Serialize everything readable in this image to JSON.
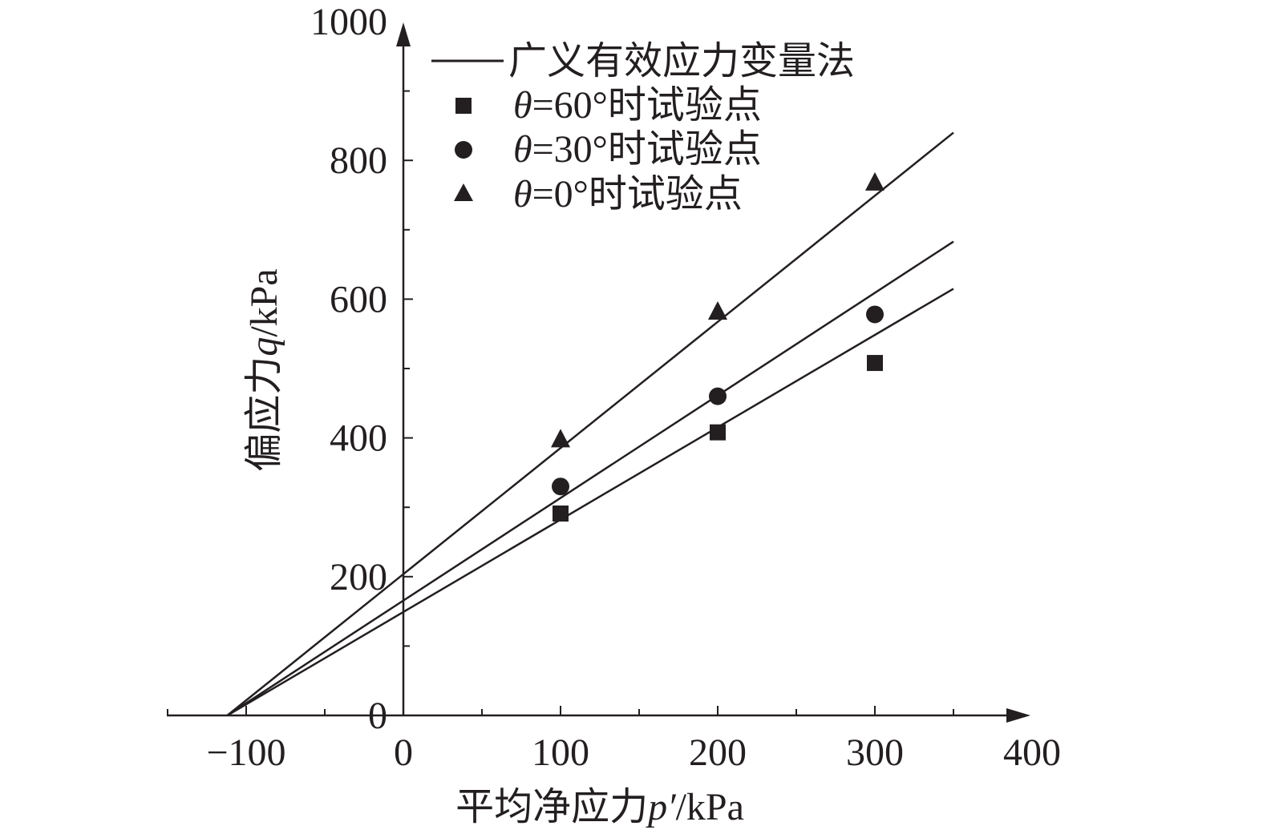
{
  "chart_data": {
    "type": "scatter",
    "title": "",
    "xlabel": {
      "prefix": "平均净应力",
      "var": "p′",
      "unit": "/kPa"
    },
    "ylabel": {
      "prefix": "偏应力",
      "var": "q",
      "unit": "/kPa"
    },
    "xlim": [
      -150,
      400
    ],
    "ylim": [
      0,
      1000
    ],
    "x_ticks": [
      -100,
      0,
      100,
      200,
      300,
      400
    ],
    "x_tick_labels": [
      "−100",
      "0",
      "100",
      "200",
      "300",
      "400"
    ],
    "y_ticks": [
      0,
      200,
      400,
      600,
      800,
      1000
    ],
    "y_tick_labels": [
      "0",
      "200",
      "400",
      "600",
      "800",
      "1000"
    ],
    "grid": false,
    "legend_position": "top",
    "legend": [
      {
        "marker": "line",
        "var": "",
        "text": "广义有效应力变量法"
      },
      {
        "marker": "square",
        "var": "θ",
        "text": "=60°时试验点"
      },
      {
        "marker": "circle",
        "var": "θ",
        "text": "=30°时试验点"
      },
      {
        "marker": "triangle",
        "var": "θ",
        "text": "=0°时试验点"
      }
    ],
    "series": [
      {
        "marker": "square",
        "x": [
          100,
          200,
          300
        ],
        "y": [
          291,
          408,
          508
        ]
      },
      {
        "marker": "circle",
        "x": [
          100,
          200,
          300
        ],
        "y": [
          330,
          460,
          578
        ]
      },
      {
        "marker": "triangle",
        "x": [
          100,
          200,
          300
        ],
        "y": [
          398,
          582,
          768
        ]
      }
    ],
    "fit_lines": [
      {
        "x": [
          -112,
          350
        ],
        "y": [
          0,
          615
        ]
      },
      {
        "x": [
          -112,
          350
        ],
        "y": [
          0,
          683
        ]
      },
      {
        "x": [
          -112,
          350
        ],
        "y": [
          0,
          840
        ]
      }
    ],
    "colors": {
      "ink": "#231f20",
      "background": "#ffffff"
    }
  }
}
